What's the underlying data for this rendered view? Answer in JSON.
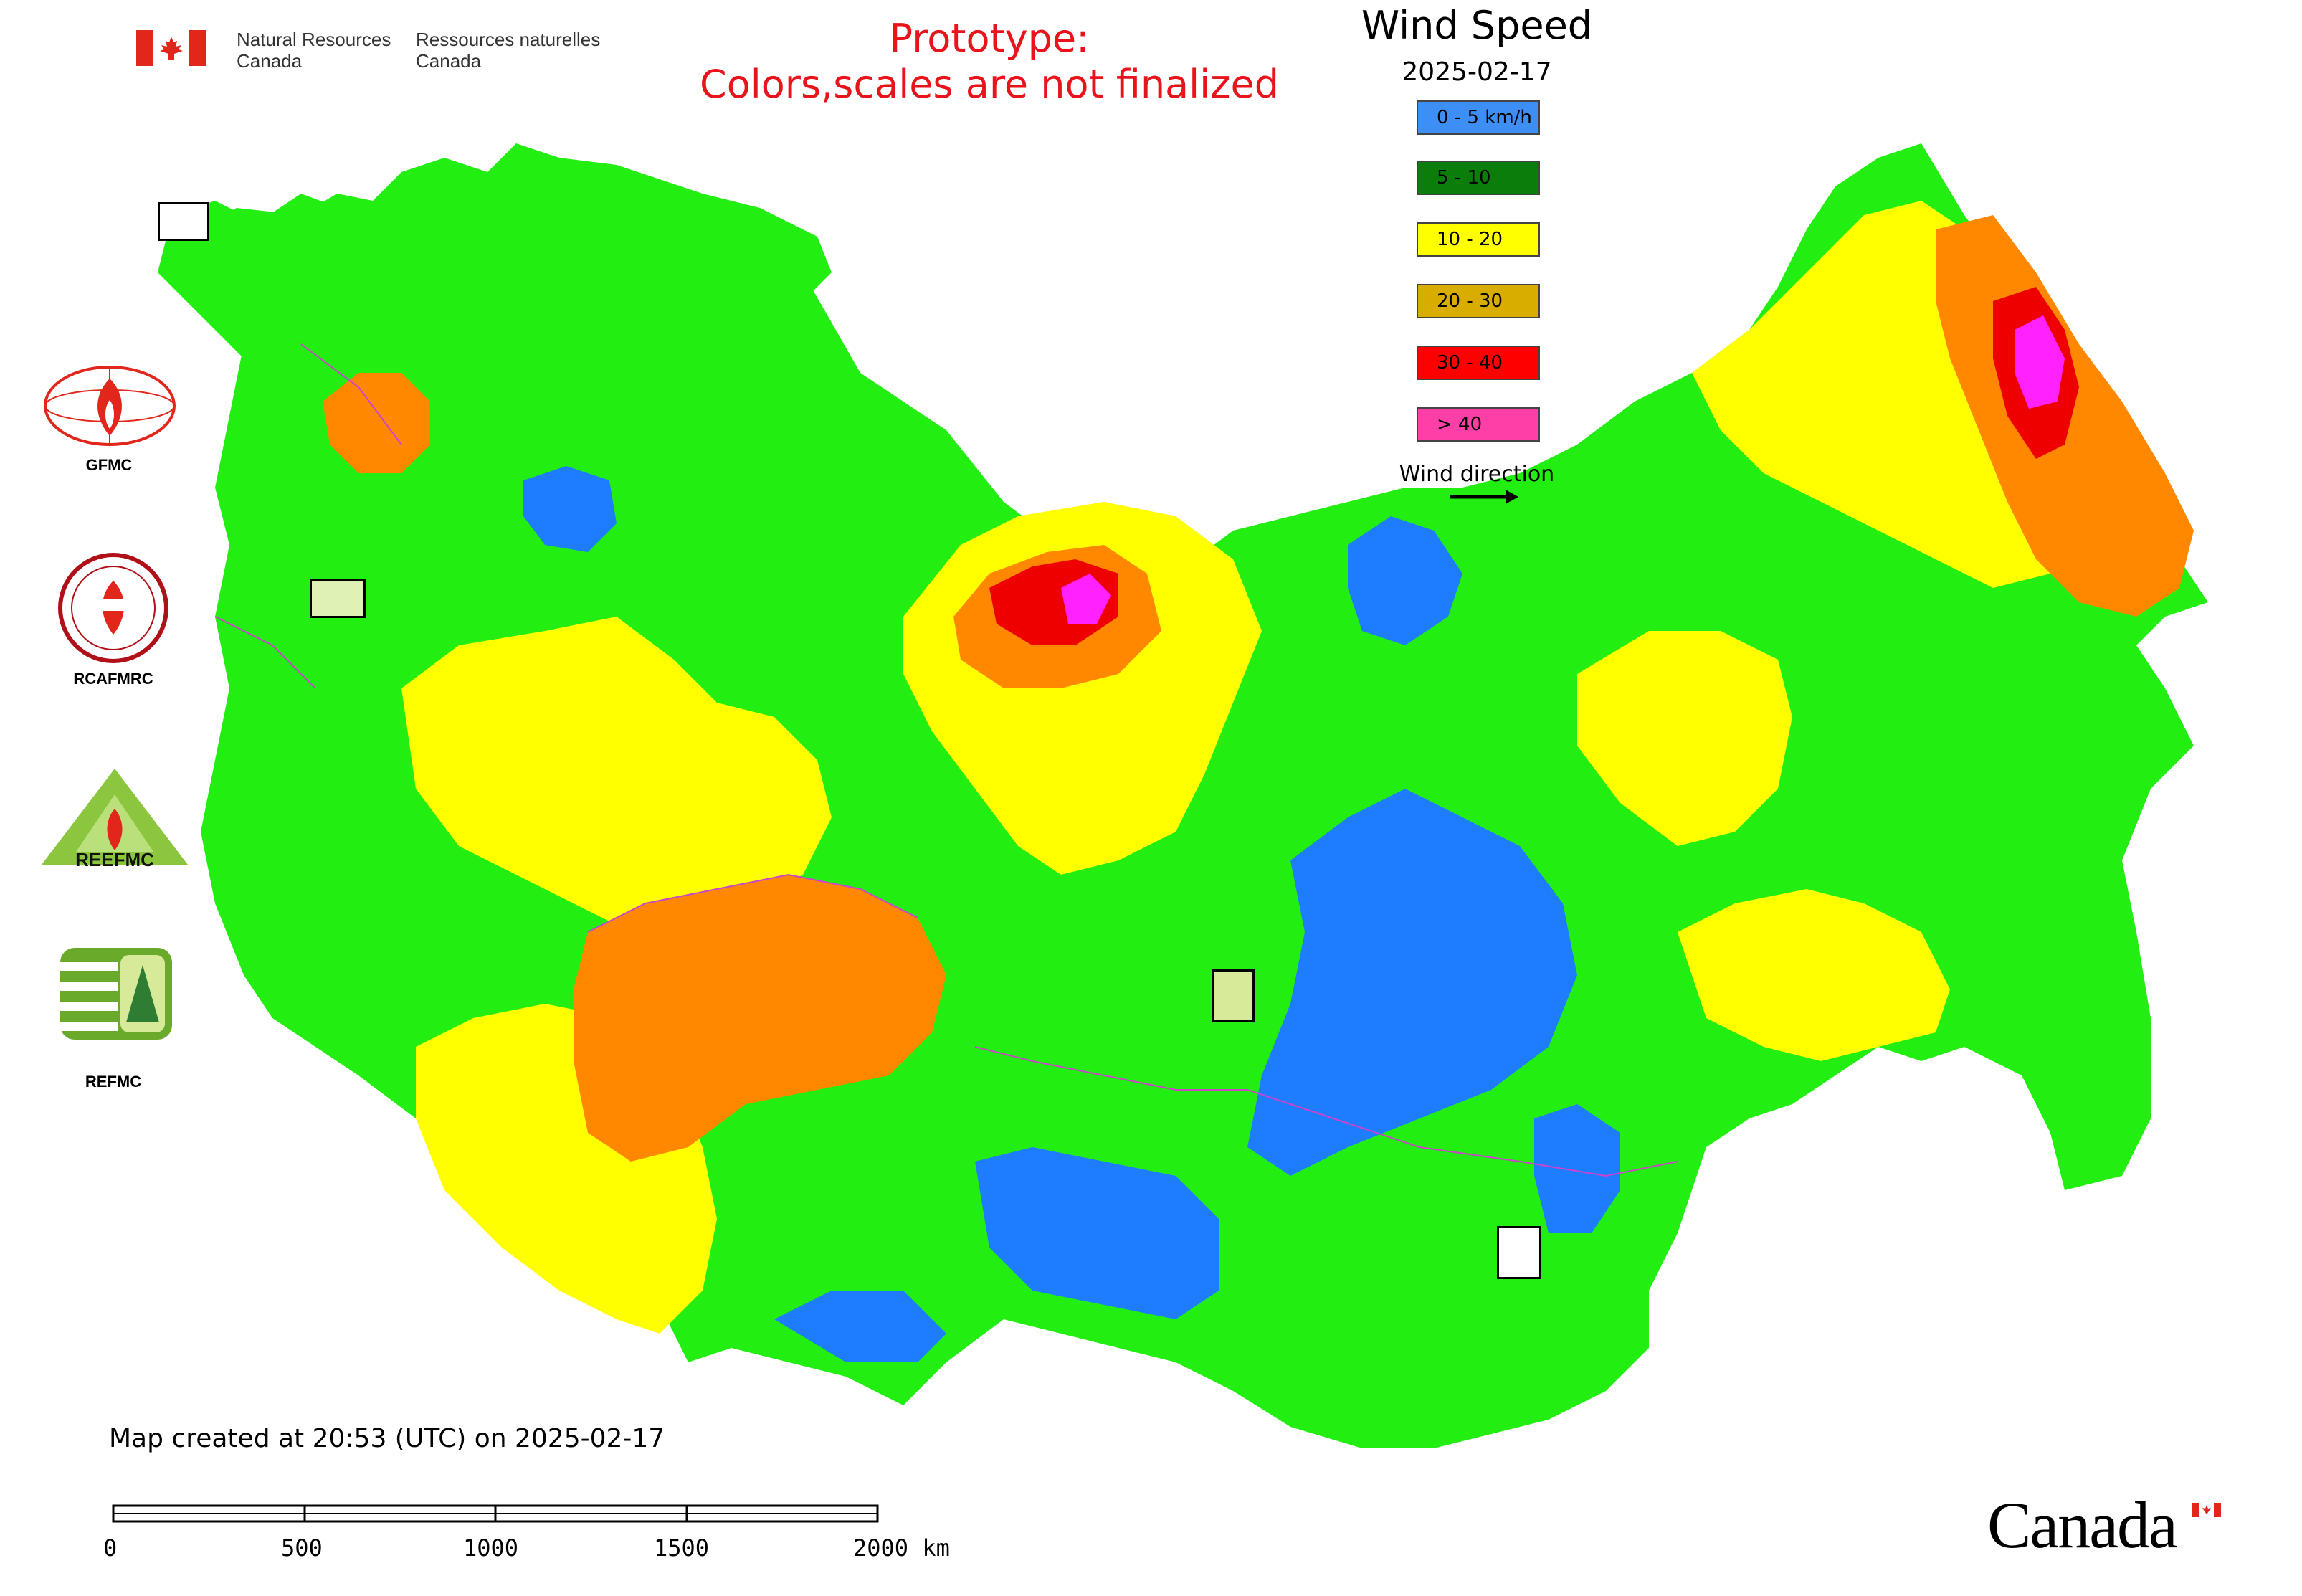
{
  "header": {
    "org_en_line1": "Natural Resources",
    "org_en_line2": "Canada",
    "org_fr_line1": "Ressources naturelles",
    "org_fr_line2": "Canada"
  },
  "notice": {
    "line1": "Prototype:",
    "line2": "Colors,scales are not finalized"
  },
  "map": {
    "title": "Wind Speed",
    "date": "2025-02-17",
    "legend": [
      {
        "label": "0 - 5 km/h",
        "color": "#3d8ef5"
      },
      {
        "label": "5 - 10",
        "color": "#0a7d0a"
      },
      {
        "label": "10 - 20",
        "color": "#ffff00"
      },
      {
        "label": "20 - 30",
        "color": "#d9ad00"
      },
      {
        "label": "30 - 40",
        "color": "#ff0000"
      },
      {
        "label": "> 40",
        "color": "#ff3fa8"
      }
    ],
    "wind_direction_label": "Wind direction",
    "field_colors": {
      "blue": "#1e7cff",
      "green": "#22ee11",
      "yellow": "#ffff00",
      "orange": "#ff8800",
      "red": "#ee0000",
      "magenta": "#ff22ff",
      "border": "#cc44cc"
    }
  },
  "side_logos": [
    {
      "label": "GFMC"
    },
    {
      "label": "RCAFMRC"
    },
    {
      "label": "REEFMC"
    },
    {
      "label": "REFMC"
    }
  ],
  "footer": {
    "created_text": "Map created at 20:53 (UTC) on 2025-02-17",
    "scale_labels": [
      "0",
      "500",
      "1000",
      "1500",
      "2000 km"
    ]
  },
  "wordmark": "Canada"
}
